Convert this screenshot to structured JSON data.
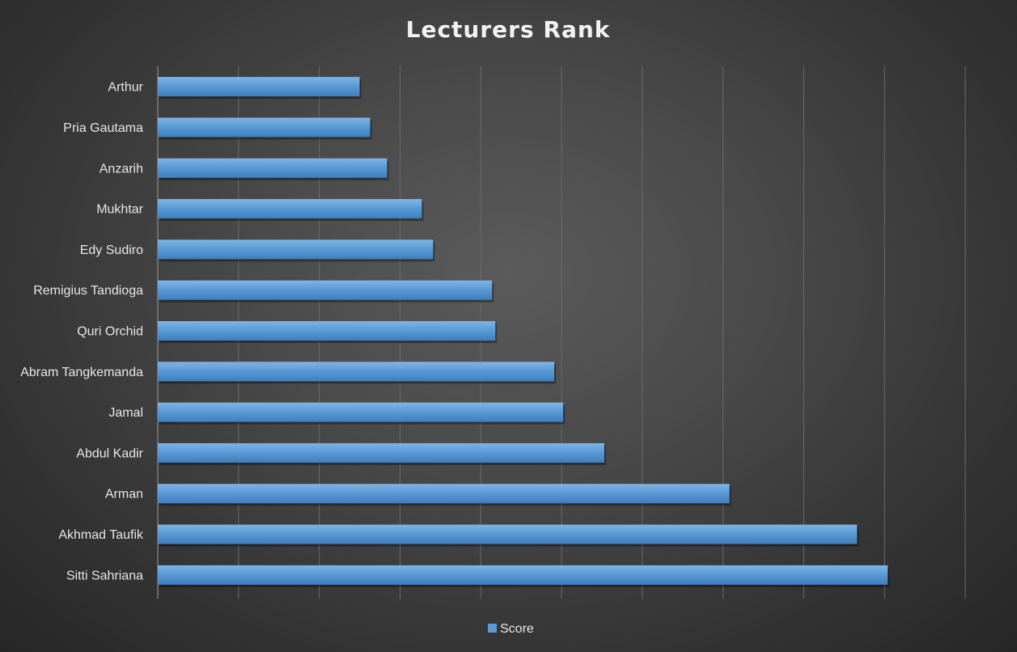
{
  "chart_data": {
    "type": "bar",
    "orientation": "horizontal",
    "title": "Lecturers Rank",
    "categories": [
      "Arthur",
      "Pria Gautama",
      "Anzarih",
      "Mukhtar",
      "Edy Sudiro",
      "Remigius Tandioga",
      "Quri Orchid",
      "Abram Tangkemanda",
      "Jamal",
      "Abdul Kadir",
      "Arman",
      "Akhmad Taufik",
      "Sitti Sahriana"
    ],
    "series": [
      {
        "name": "Score",
        "color": "#5b9bd5",
        "values": [
          2.5,
          2.63,
          2.84,
          3.27,
          3.41,
          4.14,
          4.18,
          4.91,
          5.02,
          5.53,
          7.08,
          8.66,
          9.04
        ]
      }
    ],
    "xlim": [
      0,
      10.4
    ],
    "gridlines": true,
    "legend_position": "bottom",
    "axis_tick_labels_shown": false,
    "background": "#404040"
  }
}
